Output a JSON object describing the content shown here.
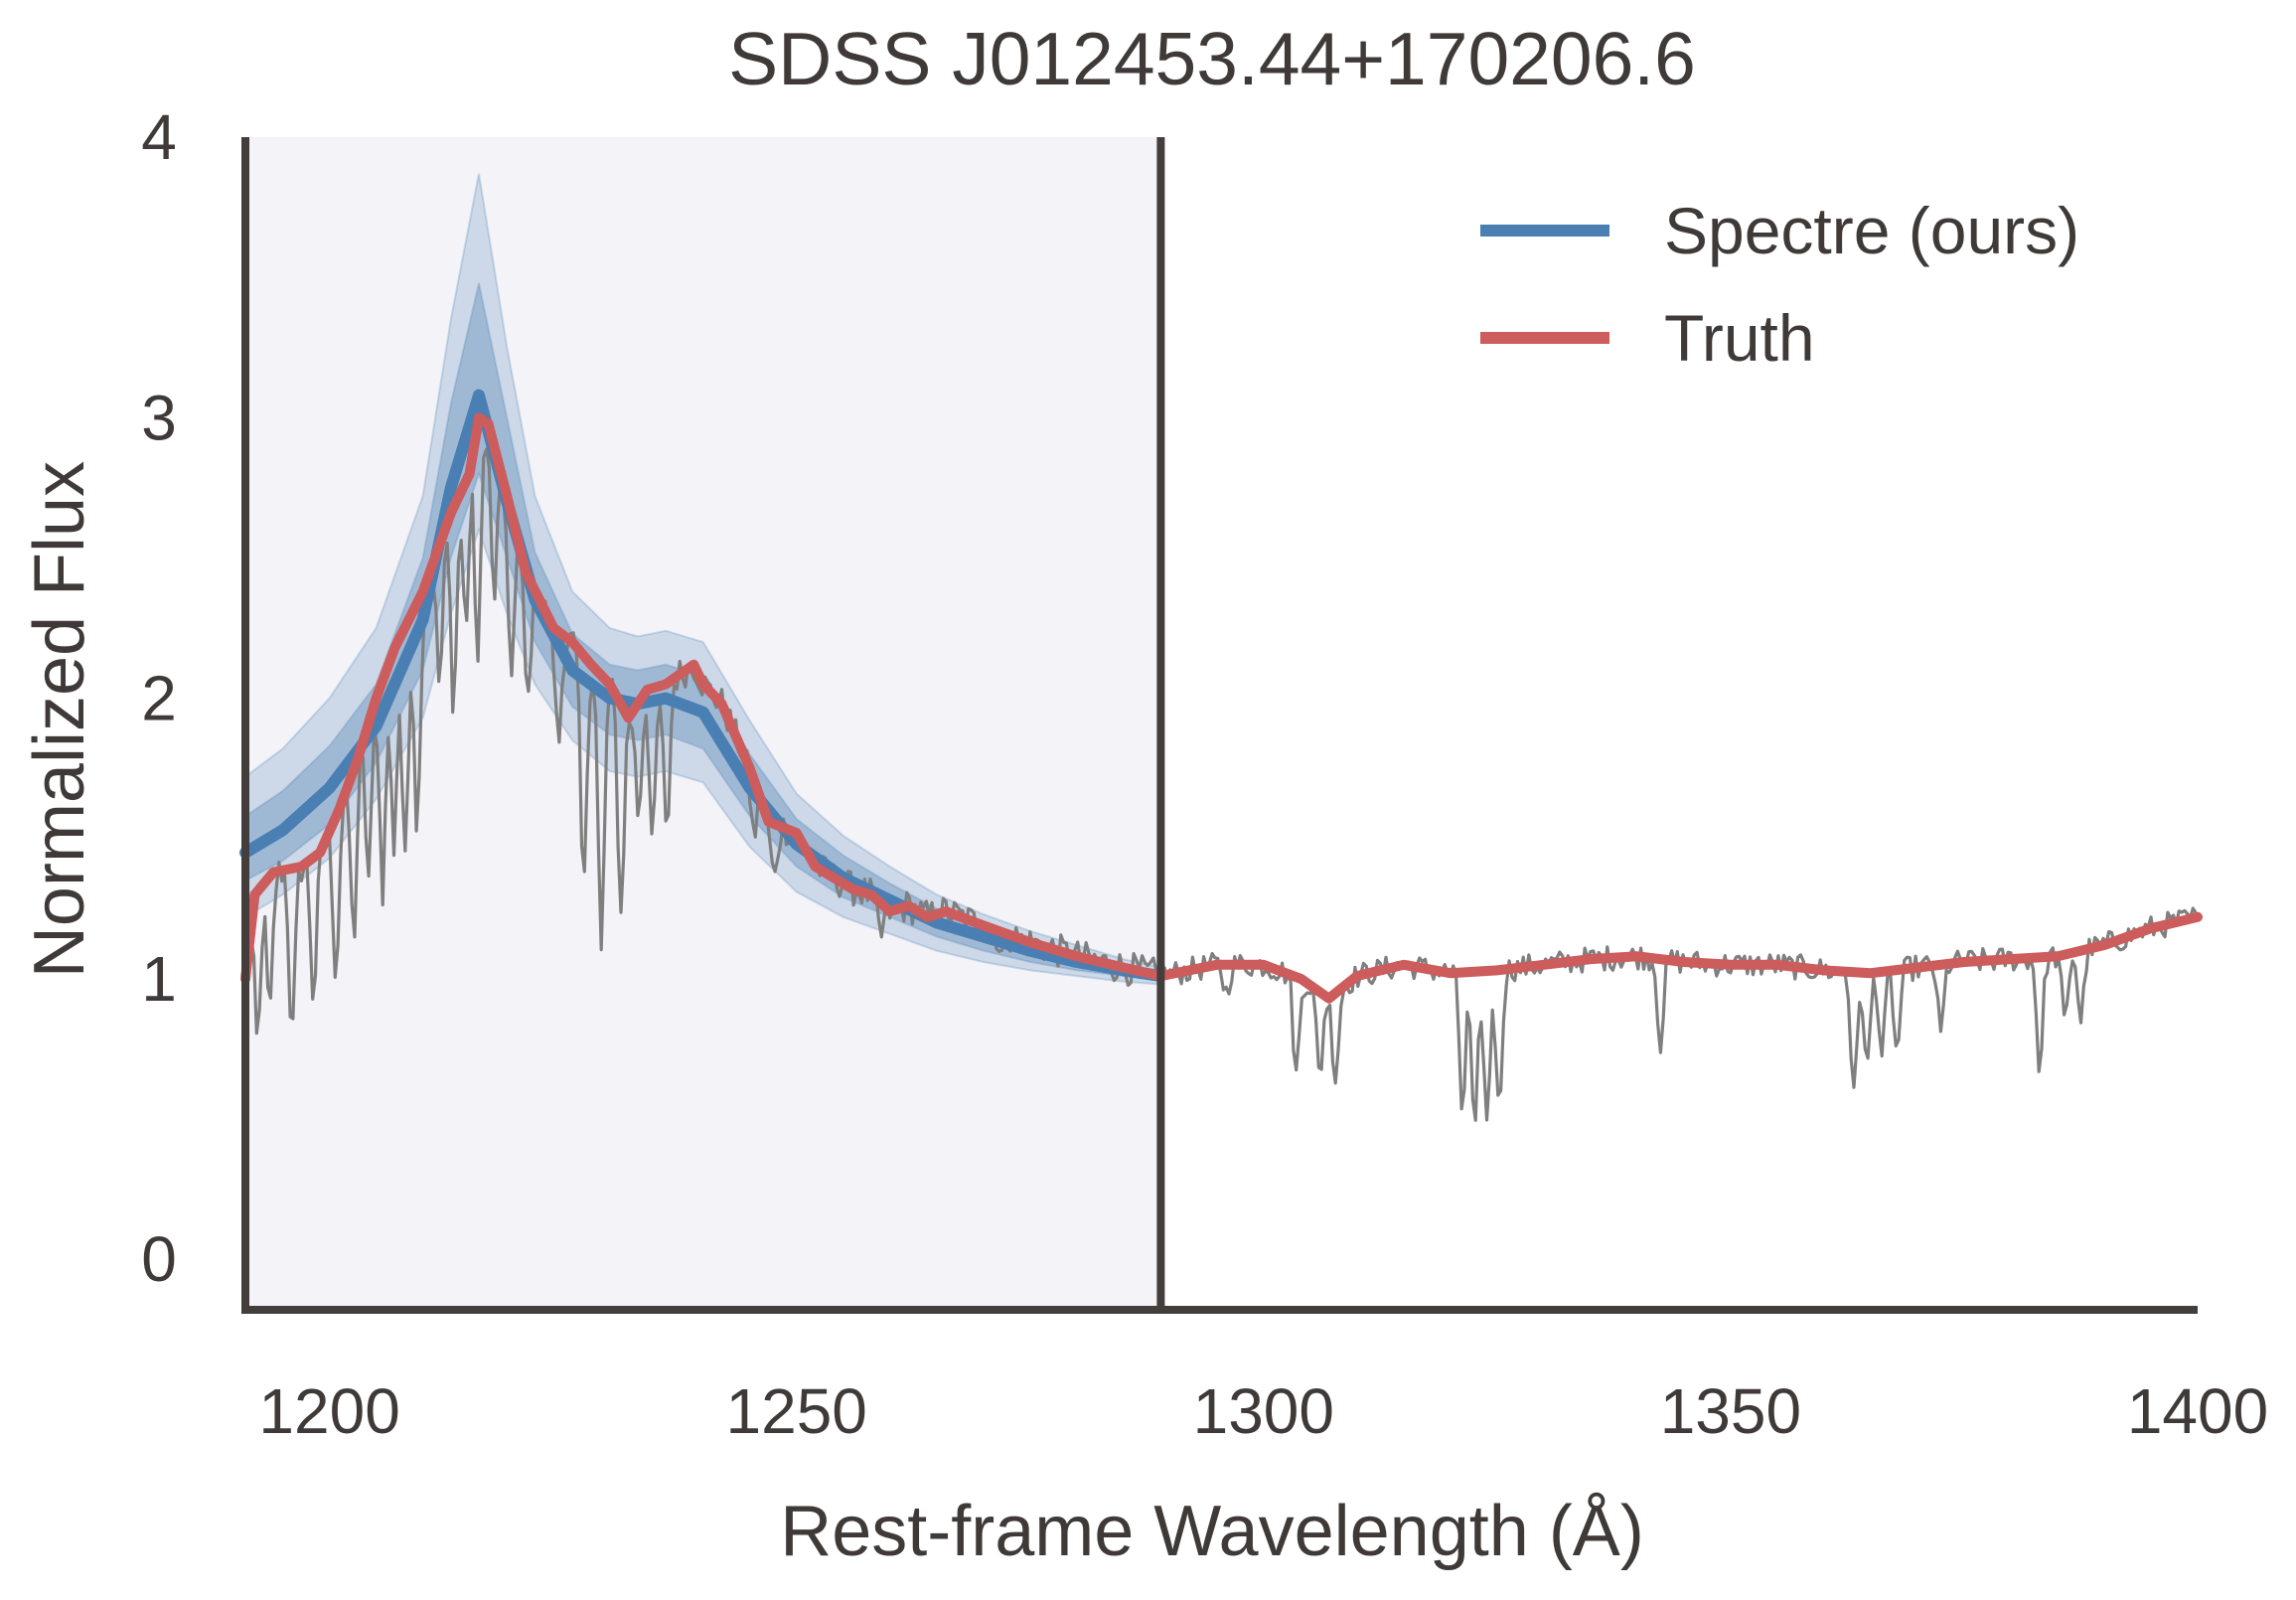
{
  "chart_data": {
    "type": "line",
    "title": "SDSS J012453.44+170206.6",
    "xlabel": "Rest-frame Wavelength (Å)",
    "ylabel": "Normalized Flux",
    "xlim": [
      1191,
      1400
    ],
    "ylim": [
      -0.18,
      4.0
    ],
    "x_ticks": [
      1200,
      1250,
      1300,
      1350,
      1400
    ],
    "y_ticks": [
      0,
      1,
      2,
      3,
      4
    ],
    "shaded_region": {
      "x_start": 1191,
      "x_end": 1289,
      "color": "#f3f3f8"
    },
    "divider_x": 1289,
    "legend": {
      "position": "top-right"
    },
    "grid": false,
    "colors": {
      "prediction": "#4a7fb3",
      "truth": "#cd5c5c",
      "observed": "#7f7f7f",
      "axes": "#433e3c"
    },
    "series": [
      {
        "name": "Spectre (ours)",
        "role": "prediction-median",
        "x": [
          1191,
          1195,
          1200,
          1205,
          1210,
          1213,
          1216,
          1219,
          1222,
          1226,
          1230,
          1233,
          1236,
          1240,
          1245,
          1250,
          1255,
          1260,
          1265,
          1270,
          1275,
          1280,
          1285,
          1289
        ],
        "y": [
          1.45,
          1.53,
          1.68,
          1.9,
          2.28,
          2.75,
          3.08,
          2.7,
          2.35,
          2.1,
          2.0,
          1.98,
          2.0,
          1.95,
          1.68,
          1.48,
          1.36,
          1.28,
          1.2,
          1.15,
          1.1,
          1.06,
          1.03,
          1.01
        ],
        "band_inner_low": [
          1.35,
          1.42,
          1.55,
          1.77,
          2.1,
          2.5,
          2.8,
          2.5,
          2.2,
          1.97,
          1.87,
          1.85,
          1.87,
          1.82,
          1.58,
          1.4,
          1.29,
          1.22,
          1.15,
          1.1,
          1.06,
          1.03,
          1.01,
          1.0
        ],
        "band_inner_high": [
          1.58,
          1.67,
          1.83,
          2.05,
          2.5,
          3.05,
          3.48,
          3.0,
          2.52,
          2.23,
          2.12,
          2.1,
          2.12,
          2.08,
          1.8,
          1.57,
          1.44,
          1.34,
          1.25,
          1.19,
          1.14,
          1.09,
          1.05,
          1.02
        ],
        "band_outer_low": [
          1.22,
          1.3,
          1.43,
          1.64,
          1.93,
          2.3,
          2.6,
          2.3,
          2.05,
          1.85,
          1.74,
          1.72,
          1.74,
          1.7,
          1.47,
          1.31,
          1.22,
          1.16,
          1.1,
          1.06,
          1.03,
          1.01,
          0.99,
          0.98
        ],
        "band_outer_high": [
          1.72,
          1.82,
          2.0,
          2.25,
          2.72,
          3.35,
          3.87,
          3.25,
          2.72,
          2.38,
          2.25,
          2.22,
          2.24,
          2.2,
          1.92,
          1.66,
          1.51,
          1.4,
          1.3,
          1.23,
          1.17,
          1.12,
          1.07,
          1.04
        ]
      },
      {
        "name": "Truth",
        "role": "truth",
        "x": [
          1191,
          1192,
          1194,
          1197,
          1199,
          1201,
          1203,
          1205,
          1207,
          1210,
          1213,
          1215,
          1216,
          1217,
          1219,
          1221,
          1224,
          1226,
          1228,
          1230,
          1232,
          1234,
          1236,
          1239,
          1240,
          1242,
          1245,
          1247,
          1250,
          1252,
          1254,
          1256,
          1258,
          1260,
          1262,
          1264,
          1266,
          1270,
          1275,
          1280,
          1285,
          1289,
          1295,
          1300,
          1304,
          1307,
          1310,
          1315,
          1320,
          1325,
          1330,
          1335,
          1340,
          1345,
          1350,
          1355,
          1360,
          1365,
          1370,
          1375,
          1380,
          1385,
          1390,
          1395,
          1400
        ],
        "y": [
          1.0,
          1.3,
          1.38,
          1.4,
          1.45,
          1.6,
          1.78,
          2.0,
          2.18,
          2.38,
          2.66,
          2.8,
          3.0,
          2.98,
          2.72,
          2.45,
          2.25,
          2.2,
          2.12,
          2.05,
          1.93,
          2.03,
          2.05,
          2.12,
          2.05,
          1.98,
          1.75,
          1.56,
          1.52,
          1.4,
          1.36,
          1.32,
          1.3,
          1.24,
          1.26,
          1.22,
          1.24,
          1.19,
          1.13,
          1.08,
          1.04,
          1.01,
          1.05,
          1.05,
          1.0,
          0.93,
          1.01,
          1.05,
          1.02,
          1.03,
          1.05,
          1.07,
          1.08,
          1.06,
          1.05,
          1.05,
          1.03,
          1.02,
          1.04,
          1.06,
          1.07,
          1.08,
          1.12,
          1.18,
          1.22
        ]
      },
      {
        "name": "",
        "role": "observed",
        "x_start": 1191,
        "x_end": 1400,
        "absorption_lines": [
          [
            1192.3,
            0.55
          ],
          [
            1193.6,
            0.5
          ],
          [
            1196.0,
            0.6
          ],
          [
            1198.3,
            0.5
          ],
          [
            1200.7,
            0.55
          ],
          [
            1202.6,
            0.6
          ],
          [
            1204.2,
            0.55
          ],
          [
            1205.7,
            0.75
          ],
          [
            1206.9,
            0.7
          ],
          [
            1208.1,
            0.85
          ],
          [
            1209.4,
            0.8
          ],
          [
            1211.8,
            0.5
          ],
          [
            1213.3,
            0.7
          ],
          [
            1214.6,
            0.5
          ],
          [
            1215.9,
            0.85
          ],
          [
            1217.6,
            0.55
          ],
          [
            1219.4,
            0.6
          ],
          [
            1221.2,
            0.45
          ],
          [
            1224.5,
            0.4
          ],
          [
            1227.2,
            0.85
          ],
          [
            1229.1,
            1.0
          ],
          [
            1231.2,
            0.75
          ],
          [
            1233.1,
            0.4
          ],
          [
            1234.6,
            0.55
          ],
          [
            1236.1,
            0.55
          ],
          [
            1245.4,
            0.2
          ],
          [
            1247.6,
            0.2
          ],
          [
            1259.0,
            0.12
          ],
          [
            1272.0,
            0.08
          ],
          [
            1296.0,
            0.1
          ],
          [
            1303.5,
            0.35
          ],
          [
            1306.0,
            0.3
          ],
          [
            1307.7,
            0.3
          ],
          [
            1321.3,
            0.5
          ],
          [
            1322.6,
            0.6
          ],
          [
            1323.9,
            0.55
          ],
          [
            1325.2,
            0.5
          ],
          [
            1342.5,
            0.3
          ],
          [
            1363.2,
            0.45
          ],
          [
            1364.6,
            0.35
          ],
          [
            1366.2,
            0.3
          ],
          [
            1367.8,
            0.3
          ],
          [
            1372.5,
            0.25
          ],
          [
            1383.1,
            0.4
          ],
          [
            1385.8,
            0.25
          ],
          [
            1387.5,
            0.25
          ]
        ]
      }
    ]
  }
}
